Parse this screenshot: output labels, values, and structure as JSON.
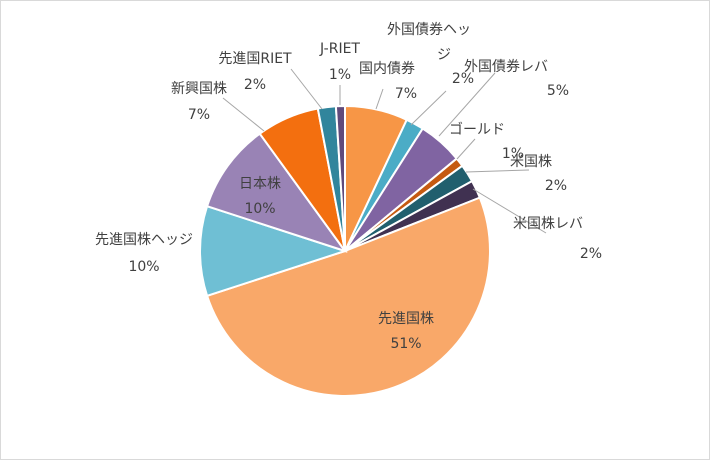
{
  "chart_data": {
    "type": "pie",
    "title": "",
    "slices": [
      {
        "name": "国内債券",
        "value": 7,
        "label": "7%",
        "color": "#F79646"
      },
      {
        "name": "外国債券ヘッジ",
        "value": 2,
        "label": "2%",
        "color": "#4BACC6"
      },
      {
        "name": "外国債券レバ",
        "value": 5,
        "label": "5%",
        "color": "#8064A2"
      },
      {
        "name": "ゴールド",
        "value": 1,
        "label": "1%",
        "color": "#C55A11"
      },
      {
        "name": "米国株",
        "value": 2,
        "label": "2%",
        "color": "#215F6E"
      },
      {
        "name": "米国株レバ",
        "value": 2,
        "label": "2%",
        "color": "#403151"
      },
      {
        "name": "先進国株",
        "value": 51,
        "label": "51%",
        "color": "#F9A869"
      },
      {
        "name": "先進国株ヘッジ",
        "value": 10,
        "label": "10%",
        "color": "#6FBFD4"
      },
      {
        "name": "日本株",
        "value": 10,
        "label": "10%",
        "color": "#9983B5"
      },
      {
        "name": "新興国株",
        "value": 7,
        "label": "7%",
        "color": "#F36F0F"
      },
      {
        "name": "先進国RIET",
        "value": 2,
        "label": "2%",
        "color": "#31859C"
      },
      {
        "name": "J-RIET",
        "value": 1,
        "label": "1%",
        "color": "#604A7B"
      }
    ]
  }
}
